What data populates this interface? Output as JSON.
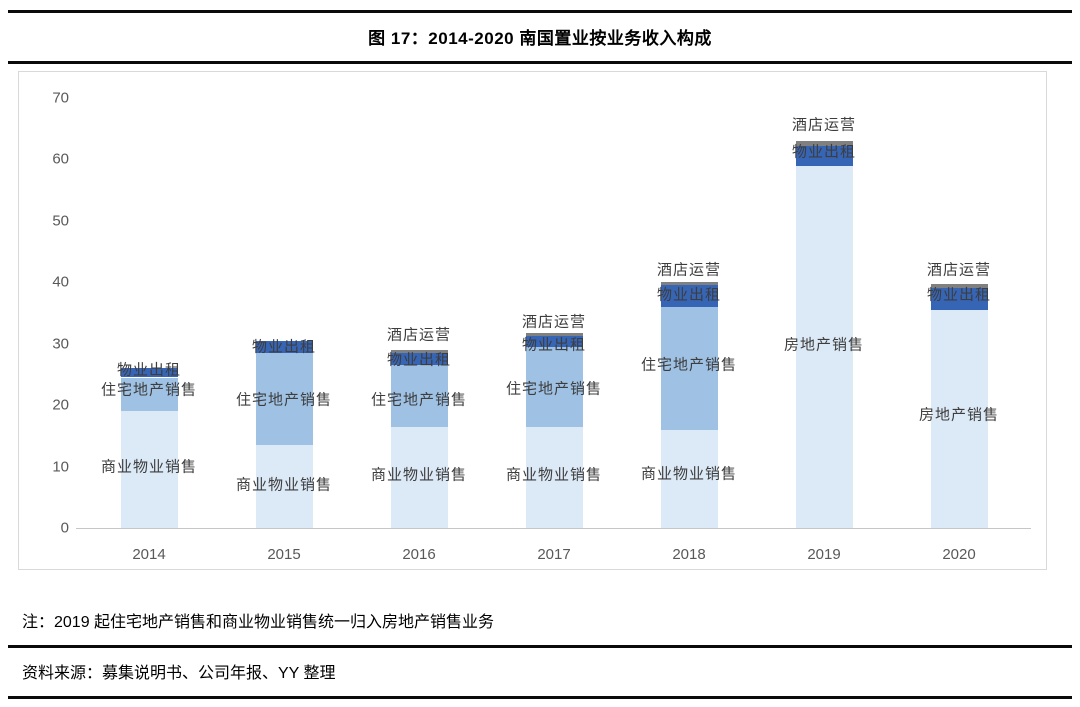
{
  "title": "图 17：2014-2020 南国置业按业务收入构成",
  "note": "注：2019 起住宅地产销售和商业物业销售统一归入房地产销售业务",
  "source": "资料来源：募集说明书、公司年报、YY 整理",
  "colors": {
    "light_blue": "#DCE9F6",
    "medium_blue": "#9EC1E4",
    "dark_blue": "#3765B5",
    "gray_cap": "#808080",
    "axis_line": "#C6C6C6",
    "tick_text": "#595959",
    "rule_black": "#0A0A0A"
  },
  "chart_data": {
    "type": "bar",
    "stacked": true,
    "title": "图 17：2014-2020 南国置业按业务收入构成",
    "categories": [
      "2014",
      "2015",
      "2016",
      "2017",
      "2018",
      "2019",
      "2020"
    ],
    "series": [
      {
        "name": "商业物业销售",
        "color": "#DCE9F6",
        "values": [
          19,
          13.5,
          16.5,
          16.5,
          16,
          0,
          0
        ]
      },
      {
        "name": "住宅地产销售",
        "color": "#9EC1E4",
        "values": [
          5.5,
          15,
          10,
          13,
          20,
          0,
          0
        ]
      },
      {
        "name": "房地产销售",
        "color": "#DCE9F6",
        "values": [
          0,
          0,
          0,
          0,
          0,
          59,
          35.5
        ]
      },
      {
        "name": "物业出租",
        "color": "#3765B5",
        "values": [
          1.5,
          2,
          2,
          1.8,
          3.5,
          3.2,
          3.6
        ]
      },
      {
        "name": "酒店运营",
        "color": "#808080",
        "values": [
          0,
          0,
          0.4,
          0.4,
          0.5,
          0.8,
          0.6
        ]
      }
    ],
    "yticks": [
      0,
      10,
      20,
      30,
      40,
      50,
      60,
      70
    ],
    "ylim": [
      0,
      70
    ],
    "grid": false,
    "legend": "none (labels annotated on bars)",
    "annotations": [
      {
        "category_index": 0,
        "text": "物业出租",
        "value": 25.9
      },
      {
        "category_index": 0,
        "text": "住宅地产销售",
        "value": 22.6
      },
      {
        "category_index": 0,
        "text": "商业物业销售",
        "value": 10.1
      },
      {
        "category_index": 1,
        "text": "物业出租",
        "value": 29.6
      },
      {
        "category_index": 1,
        "text": "住宅地产销售",
        "value": 21.0
      },
      {
        "category_index": 1,
        "text": "商业物业销售",
        "value": 7.2
      },
      {
        "category_index": 2,
        "text": "酒店运营",
        "value": 31.6
      },
      {
        "category_index": 2,
        "text": "物业出租",
        "value": 27.5
      },
      {
        "category_index": 2,
        "text": "住宅地产销售",
        "value": 21.0
      },
      {
        "category_index": 2,
        "text": "商业物业销售",
        "value": 8.8
      },
      {
        "category_index": 3,
        "text": "酒店运营",
        "value": 33.7
      },
      {
        "category_index": 3,
        "text": "物业出租",
        "value": 30.0
      },
      {
        "category_index": 3,
        "text": "住宅地产销售",
        "value": 22.8
      },
      {
        "category_index": 3,
        "text": "商业物业销售",
        "value": 8.8
      },
      {
        "category_index": 4,
        "text": "酒店运营",
        "value": 42.2
      },
      {
        "category_index": 4,
        "text": "物业出租",
        "value": 38.1
      },
      {
        "category_index": 4,
        "text": "住宅地产销售",
        "value": 26.7
      },
      {
        "category_index": 4,
        "text": "商业物业销售",
        "value": 9.0
      },
      {
        "category_index": 5,
        "text": "酒店运营",
        "value": 65.8
      },
      {
        "category_index": 5,
        "text": "物业出租",
        "value": 61.4
      },
      {
        "category_index": 5,
        "text": "房地产销售",
        "value": 30.0
      },
      {
        "category_index": 6,
        "text": "酒店运营",
        "value": 42.2
      },
      {
        "category_index": 6,
        "text": "物业出租",
        "value": 38.1
      },
      {
        "category_index": 6,
        "text": "房地产销售",
        "value": 18.6
      }
    ]
  }
}
